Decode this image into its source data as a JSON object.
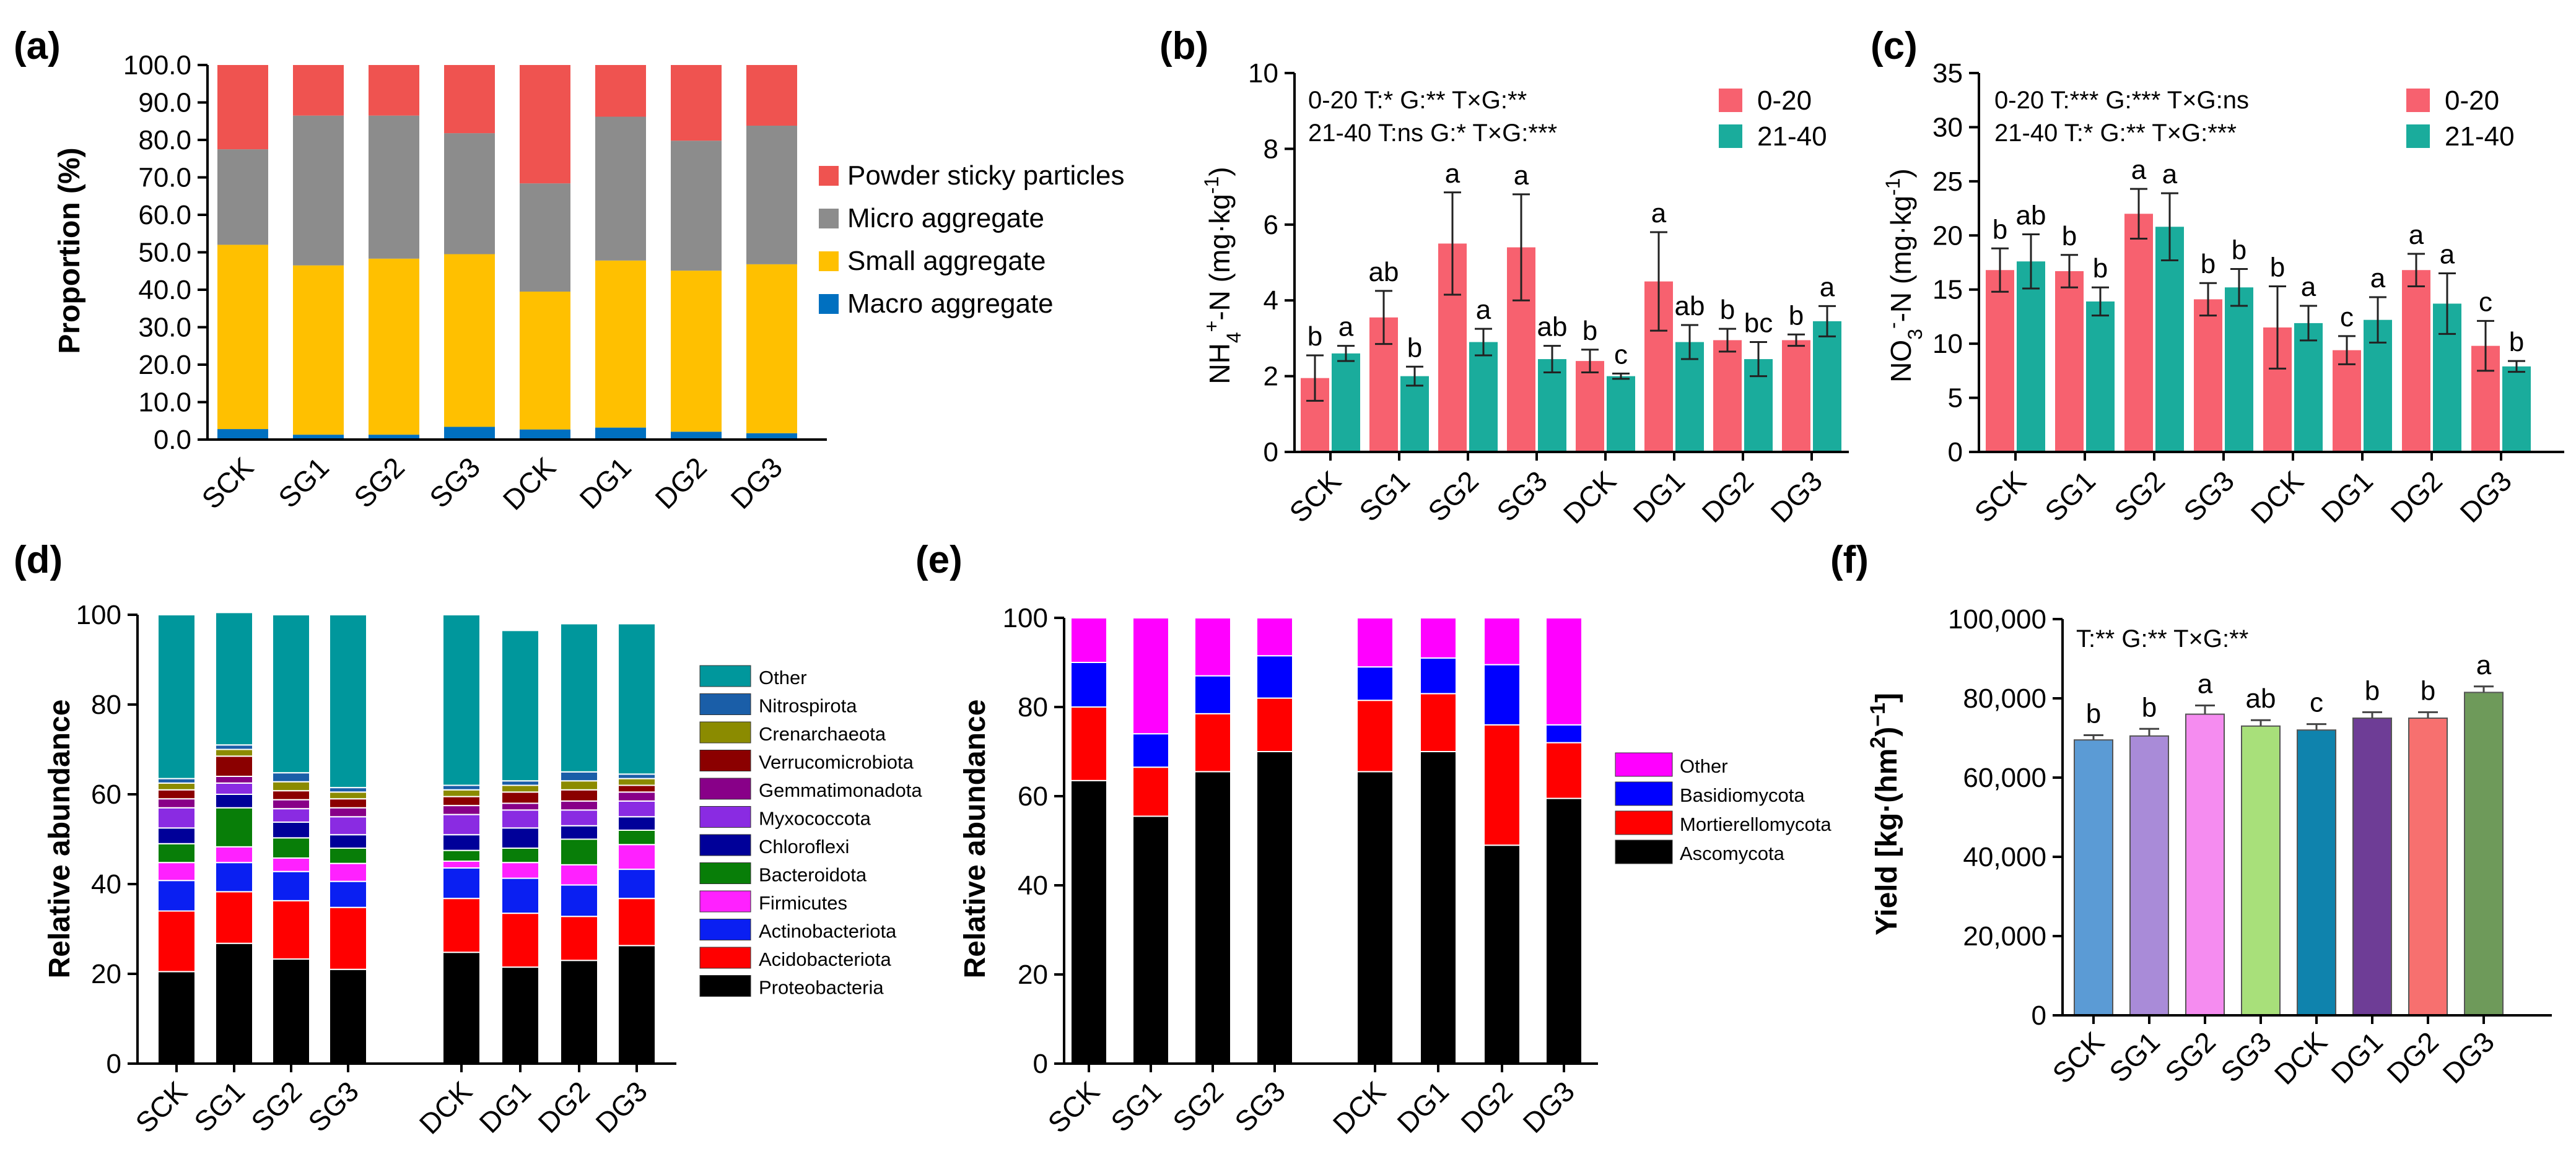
{
  "chart_data": [
    {
      "id": "a",
      "type": "bar",
      "stacked": true,
      "panel_label": "(a)",
      "categories": [
        "SCK",
        "SG1",
        "SG2",
        "SG3",
        "DCK",
        "DG1",
        "DG2",
        "DG3"
      ],
      "ylabel": "Proportion (%)",
      "ylim": [
        0,
        100
      ],
      "yticks": [
        "0.0",
        "10.0",
        "20.0",
        "30.0",
        "40.0",
        "50.0",
        "60.0",
        "70.0",
        "80.0",
        "90.0",
        "100.0"
      ],
      "legend_position": "right",
      "series": [
        {
          "name": "Macro aggregate",
          "color": "#0070c0",
          "values": [
            2.8,
            1.3,
            1.3,
            3.4,
            2.7,
            3.2,
            2.1,
            1.7
          ]
        },
        {
          "name": "Small aggregate",
          "color": "#ffc000",
          "values": [
            49.2,
            45.2,
            47.0,
            46.1,
            36.8,
            44.6,
            43.0,
            45.1
          ]
        },
        {
          "name": "Micro aggregate",
          "color": "#8c8c8c",
          "values": [
            25.5,
            40.0,
            38.2,
            32.3,
            28.9,
            38.4,
            34.7,
            37.0
          ]
        },
        {
          "name": "Powder sticky particles",
          "color": "#ef5350",
          "values": [
            22.5,
            13.5,
            13.5,
            18.2,
            31.6,
            13.8,
            20.2,
            16.2
          ]
        }
      ]
    },
    {
      "id": "b",
      "type": "bar",
      "panel_label": "(b)",
      "categories": [
        "SCK",
        "SG1",
        "SG2",
        "SG3",
        "DCK",
        "DG1",
        "DG2",
        "DG3"
      ],
      "ylabel_main": "NH",
      "ylabel_sub": "4",
      "ylabel_sup": "+",
      "ylabel_rest": "-N (mg·kg",
      "ylabel_exp": "-1",
      "ylabel_end": ")",
      "ylim": [
        0,
        10
      ],
      "yticks": [
        "0",
        "2",
        "4",
        "6",
        "8",
        "10"
      ],
      "legend_position": "top-right",
      "annotations": [
        "0-20     T:*     G:**    T×G:**",
        "21-40  T:ns  G:*     T×G:***"
      ],
      "series": [
        {
          "name": "0-20",
          "color": "#f7616f",
          "values": [
            1.95,
            3.55,
            5.5,
            5.4,
            2.4,
            4.5,
            2.95,
            2.95
          ],
          "err": [
            0.6,
            0.7,
            1.35,
            1.4,
            0.3,
            1.3,
            0.3,
            0.15
          ],
          "letters": [
            "b",
            "ab",
            "a",
            "a",
            "b",
            "a",
            "b",
            "b"
          ]
        },
        {
          "name": "21-40",
          "color": "#1aac9c",
          "values": [
            2.6,
            2.0,
            2.9,
            2.45,
            2.0,
            2.9,
            2.45,
            3.45
          ],
          "err": [
            0.2,
            0.25,
            0.35,
            0.35,
            0.07,
            0.45,
            0.45,
            0.4
          ],
          "letters": [
            "a",
            "b",
            "a",
            "ab",
            "c",
            "ab",
            "bc",
            "a"
          ]
        }
      ]
    },
    {
      "id": "c",
      "type": "bar",
      "panel_label": "(c)",
      "categories": [
        "SCK",
        "SG1",
        "SG2",
        "SG3",
        "DCK",
        "DG1",
        "DG2",
        "DG3"
      ],
      "ylabel_main": "NO",
      "ylabel_sub": "3",
      "ylabel_sup": "-",
      "ylabel_rest": "-N (mg·kg",
      "ylabel_exp": "-1",
      "ylabel_end": ")",
      "ylim": [
        0,
        35
      ],
      "yticks": [
        "0",
        "5",
        "10",
        "15",
        "20",
        "25",
        "30",
        "35"
      ],
      "legend_position": "top-right",
      "annotations": [
        "0-20     T:***   G:***   T×G:ns",
        "21-40  T:*      G:**    T×G:***"
      ],
      "series": [
        {
          "name": "0-20",
          "color": "#f7616f",
          "values": [
            16.8,
            16.7,
            22.0,
            14.1,
            11.5,
            9.4,
            16.8,
            9.8
          ],
          "err": [
            2.0,
            1.5,
            2.3,
            1.5,
            3.8,
            1.3,
            1.5,
            2.3
          ],
          "letters": [
            "b",
            "b",
            "a",
            "b",
            "b",
            "c",
            "a",
            "c"
          ]
        },
        {
          "name": "21-40",
          "color": "#1aac9c",
          "values": [
            17.6,
            13.9,
            20.8,
            15.2,
            11.9,
            12.2,
            13.7,
            7.9
          ],
          "err": [
            2.5,
            1.3,
            3.1,
            1.7,
            1.6,
            2.1,
            2.8,
            0.5
          ],
          "letters": [
            "ab",
            "b",
            "a",
            "b",
            "a",
            "a",
            "a",
            "b"
          ]
        }
      ]
    },
    {
      "id": "d",
      "type": "bar",
      "stacked": true,
      "panel_label": "(d)",
      "categories": [
        "SCK",
        "SG1",
        "SG2",
        "SG3",
        "DCK",
        "DG1",
        "DG2",
        "DG3"
      ],
      "ylabel": "Relative abundance",
      "ylim": [
        0,
        100
      ],
      "yticks": [
        "0",
        "20",
        "40",
        "60",
        "80",
        "100"
      ],
      "legend_position": "right",
      "series": [
        {
          "name": "Proteobacteria",
          "color": "#000000",
          "values": [
            20.5,
            26.8,
            23.3,
            21.0,
            24.8,
            21.5,
            23.0,
            26.3
          ]
        },
        {
          "name": "Acidobacteriota",
          "color": "#ff0000",
          "values": [
            13.5,
            11.5,
            13.0,
            13.8,
            12.0,
            12.0,
            9.8,
            10.5
          ]
        },
        {
          "name": "Actinobacteriota",
          "color": "#0a1ff2",
          "values": [
            6.8,
            6.5,
            6.5,
            5.8,
            6.8,
            7.8,
            7.0,
            6.5
          ]
        },
        {
          "name": "Firmicutes",
          "color": "#ff21ff",
          "values": [
            4.0,
            3.5,
            3.0,
            4.0,
            1.5,
            3.5,
            4.5,
            5.5
          ]
        },
        {
          "name": "Bacteroidota",
          "color": "#087e08",
          "values": [
            4.2,
            8.7,
            4.5,
            3.4,
            2.4,
            3.2,
            5.7,
            3.2
          ]
        },
        {
          "name": "Chloroflexi",
          "color": "#000099",
          "values": [
            3.5,
            3.0,
            3.5,
            3.0,
            3.5,
            4.5,
            3.0,
            3.0
          ]
        },
        {
          "name": "Myxococcota",
          "color": "#8a2be2",
          "values": [
            4.5,
            2.5,
            3.0,
            4.0,
            4.5,
            4.0,
            3.5,
            3.5
          ]
        },
        {
          "name": "Gemmatimonadota",
          "color": "#880088",
          "values": [
            2.0,
            1.5,
            2.0,
            2.0,
            2.0,
            1.5,
            2.0,
            2.0
          ]
        },
        {
          "name": "Verrucomicrobiota",
          "color": "#8b0000",
          "values": [
            2.0,
            4.5,
            2.0,
            2.0,
            2.0,
            2.5,
            2.5,
            1.5
          ]
        },
        {
          "name": "Crenarchaeota",
          "color": "#8b8b00",
          "values": [
            1.5,
            1.5,
            2.0,
            1.5,
            1.5,
            1.5,
            2.0,
            1.5
          ]
        },
        {
          "name": "Nitrospirota",
          "color": "#1a5ea8",
          "values": [
            1.0,
            1.0,
            2.0,
            1.0,
            1.0,
            1.0,
            2.0,
            1.0
          ]
        },
        {
          "name": "Other",
          "color": "#00979c",
          "values": [
            36.5,
            29.5,
            35.2,
            38.5,
            38.0,
            33.5,
            33.0,
            33.5
          ]
        }
      ]
    },
    {
      "id": "e",
      "type": "bar",
      "stacked": true,
      "panel_label": "(e)",
      "categories": [
        "SCK",
        "SG1",
        "SG2",
        "SG3",
        "DCK",
        "DG1",
        "DG2",
        "DG3"
      ],
      "ylabel": "Relative abundance",
      "ylim": [
        0,
        100
      ],
      "yticks": [
        "0",
        "20",
        "40",
        "60",
        "80",
        "100"
      ],
      "legend_position": "right",
      "series": [
        {
          "name": "Ascomycota",
          "color": "#000000",
          "values": [
            63.5,
            55.5,
            65.5,
            70.0,
            65.5,
            70.0,
            49.0,
            59.5
          ]
        },
        {
          "name": "Mortierellomycota",
          "color": "#ff0000",
          "values": [
            16.5,
            11.0,
            13.0,
            12.0,
            16.0,
            13.0,
            27.0,
            12.5
          ]
        },
        {
          "name": "Basidiomycota",
          "color": "#0000ff",
          "values": [
            10.0,
            7.5,
            8.5,
            9.5,
            7.5,
            8.0,
            13.5,
            4.0
          ]
        },
        {
          "name": "Other",
          "color": "#ff00ff",
          "values": [
            10.0,
            26.0,
            13.0,
            8.5,
            11.0,
            9.0,
            10.5,
            24.0
          ]
        }
      ]
    },
    {
      "id": "f",
      "type": "bar",
      "panel_label": "(f)",
      "categories": [
        "SCK",
        "SG1",
        "SG2",
        "SG3",
        "DCK",
        "DG1",
        "DG2",
        "DG3"
      ],
      "ylabel_main": "Yield [kg·(hm",
      "ylabel_exp1": "2",
      "ylabel_mid": ")",
      "ylabel_exp2": "−1",
      "ylabel_end": "]",
      "ylim": [
        0,
        100000
      ],
      "yticks": [
        "0",
        "20,000",
        "40,000",
        "60,000",
        "80,000",
        "100,000"
      ],
      "annotations": [
        "T:**    G:**    T×G:**"
      ],
      "colors": [
        "#5b9bd5",
        "#a98bd8",
        "#f58cf0",
        "#a8e07a",
        "#0f83ad",
        "#6e3d96",
        "#f7706f",
        "#6e9a5a"
      ],
      "values": [
        69500,
        70500,
        76000,
        73000,
        72000,
        75000,
        75000,
        81500
      ],
      "err": [
        1200,
        1800,
        2200,
        1500,
        1500,
        1500,
        1500,
        1500
      ],
      "letters": [
        "b",
        "b",
        "a",
        "ab",
        "c",
        "b",
        "b",
        "a"
      ]
    }
  ]
}
